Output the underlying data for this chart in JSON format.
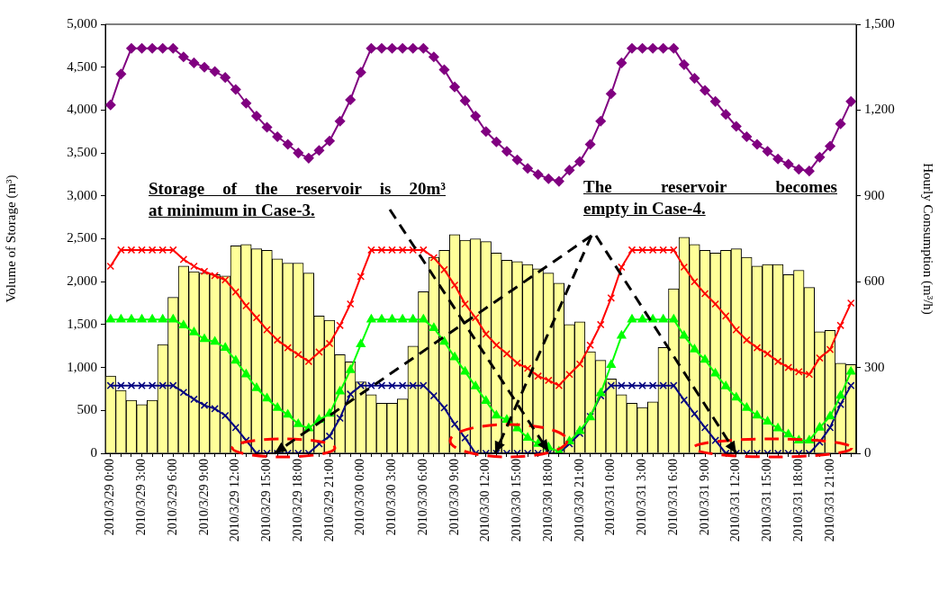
{
  "chart_data": {
    "type": "line",
    "ylabel": "Volume of Storage (m³)",
    "y2label": "Hourly Consumption (m³/h)",
    "annotations": [
      {
        "text": "Storage of the reservoir is 20m³ at minimum in Case-3.",
        "x": "2010/3/30 18:00",
        "y": 20
      },
      {
        "text": "The reservoir becomes empty in Case-4.",
        "x": "2010/3/31 12:00",
        "y": 0
      }
    ],
    "categories": [
      "2010/3/29 0:00",
      null,
      null,
      "2010/3/29 3:00",
      null,
      null,
      "2010/3/29 6:00",
      null,
      null,
      "2010/3/29 9:00",
      null,
      null,
      "2010/3/29 12:00",
      null,
      null,
      "2010/3/29 15:00",
      null,
      null,
      "2010/3/29 18:00",
      null,
      null,
      "2010/3/29 21:00",
      null,
      null,
      "2010/3/30 0:00",
      null,
      null,
      "2010/3/30 3:00",
      null,
      null,
      "2010/3/30 6:00",
      null,
      null,
      "2010/3/30 9:00",
      null,
      null,
      "2010/3/30 12:00",
      null,
      null,
      "2010/3/30 15:00",
      null,
      null,
      "2010/3/30 18:00",
      null,
      null,
      "2010/3/30 21:00",
      null,
      null,
      "2010/3/31 0:00",
      null,
      null,
      "2010/3/31 3:00",
      null,
      null,
      "2010/3/31 6:00",
      null,
      null,
      "2010/3/31 9:00",
      null,
      null,
      "2010/3/31 12:00",
      null,
      null,
      "2010/3/31 15:00",
      null,
      null,
      "2010/3/31 18:00",
      null,
      null,
      "2010/3/31 21:00",
      null,
      null
    ],
    "series": [
      {
        "type": "bar",
        "axis": "y2",
        "color": "#ffff99",
        "values": [
          270,
          220,
          185,
          170,
          185,
          380,
          545,
          655,
          635,
          630,
          625,
          620,
          725,
          730,
          715,
          710,
          680,
          665,
          665,
          630,
          480,
          465,
          345,
          320,
          250,
          205,
          175,
          175,
          190,
          375,
          565,
          685,
          710,
          765,
          745,
          750,
          740,
          700,
          675,
          670,
          660,
          645,
          630,
          595,
          450,
          460,
          355,
          325,
          260,
          205,
          175,
          160,
          180,
          370,
          575,
          755,
          730,
          710,
          700,
          710,
          715,
          685,
          655,
          660,
          660,
          625,
          640,
          580,
          425,
          430,
          315,
          310
        ]
      },
      {
        "color": "#800080",
        "marker": "diamond",
        "values": [
          4060,
          4420,
          4720,
          4720,
          4720,
          4720,
          4720,
          4620,
          4550,
          4500,
          4450,
          4380,
          4240,
          4080,
          3930,
          3800,
          3690,
          3600,
          3500,
          3440,
          3530,
          3640,
          3870,
          4120,
          4440,
          4720,
          4720,
          4720,
          4720,
          4720,
          4720,
          4620,
          4470,
          4270,
          4110,
          3930,
          3750,
          3630,
          3520,
          3420,
          3320,
          3250,
          3200,
          3170,
          3300,
          3400,
          3600,
          3870,
          4190,
          4550,
          4720,
          4720,
          4720,
          4720,
          4720,
          4530,
          4370,
          4230,
          4100,
          3950,
          3810,
          3690,
          3600,
          3520,
          3430,
          3370,
          3310,
          3290,
          3450,
          3580,
          3840,
          4100
        ]
      },
      {
        "color": "#ff0000",
        "marker": "cross",
        "values": [
          2180,
          2370,
          2370,
          2370,
          2370,
          2370,
          2370,
          2260,
          2180,
          2120,
          2070,
          2020,
          1880,
          1720,
          1580,
          1440,
          1320,
          1230,
          1150,
          1070,
          1180,
          1280,
          1490,
          1740,
          2060,
          2370,
          2370,
          2370,
          2370,
          2370,
          2370,
          2280,
          2140,
          1960,
          1740,
          1580,
          1390,
          1260,
          1160,
          1050,
          990,
          900,
          850,
          790,
          920,
          1040,
          1260,
          1500,
          1810,
          2170,
          2370,
          2370,
          2370,
          2370,
          2370,
          2170,
          2000,
          1860,
          1740,
          1600,
          1440,
          1320,
          1230,
          1160,
          1070,
          1000,
          950,
          920,
          1110,
          1210,
          1490,
          1750
        ]
      },
      {
        "color": "#00ff00",
        "marker": "triangle",
        "values": [
          1560,
          1560,
          1560,
          1560,
          1560,
          1560,
          1560,
          1490,
          1410,
          1330,
          1300,
          1230,
          1080,
          920,
          760,
          640,
          530,
          450,
          340,
          290,
          390,
          460,
          720,
          970,
          1270,
          1560,
          1560,
          1560,
          1560,
          1560,
          1560,
          1460,
          1300,
          1120,
          950,
          780,
          610,
          440,
          390,
          290,
          180,
          110,
          70,
          20,
          140,
          260,
          420,
          700,
          1030,
          1370,
          1560,
          1560,
          1560,
          1560,
          1560,
          1370,
          1210,
          1090,
          930,
          780,
          650,
          530,
          440,
          370,
          290,
          220,
          150,
          150,
          300,
          430,
          670,
          950
        ]
      },
      {
        "color": "#000080",
        "marker": "cross",
        "values": [
          790,
          790,
          790,
          790,
          790,
          790,
          790,
          710,
          630,
          560,
          520,
          440,
          300,
          150,
          0,
          0,
          0,
          0,
          0,
          0,
          110,
          200,
          410,
          690,
          790,
          790,
          790,
          790,
          790,
          790,
          790,
          670,
          530,
          340,
          180,
          0,
          0,
          0,
          0,
          0,
          0,
          0,
          0,
          0,
          110,
          230,
          430,
          670,
          790,
          790,
          790,
          790,
          790,
          790,
          790,
          620,
          460,
          300,
          150,
          0,
          0,
          0,
          0,
          0,
          0,
          0,
          0,
          0,
          130,
          300,
          570,
          790
        ]
      }
    ],
    "ylim": [
      0,
      5000
    ],
    "yticks": [
      0,
      {
        "value": 500,
        "label": "500"
      },
      {
        "value": 1000,
        "label": "1,000"
      },
      {
        "value": 1500,
        "label": "1,500"
      },
      {
        "value": 2000,
        "label": "2,000"
      },
      {
        "value": 2500,
        "label": "2,500"
      },
      {
        "value": 3000,
        "label": "3,000"
      },
      {
        "value": 3500,
        "label": "3,500"
      },
      {
        "value": 4000,
        "label": "4,000"
      },
      {
        "value": 4500,
        "label": "4,500"
      },
      {
        "value": 5000,
        "label": "5,000"
      }
    ],
    "y2lim": [
      0,
      1500
    ],
    "y2ticks": [
      0,
      300,
      600,
      900,
      {
        "value": 1200,
        "label": "1,200"
      },
      {
        "value": 1500,
        "label": "1,500"
      }
    ],
    "grid": false,
    "legend": false
  }
}
